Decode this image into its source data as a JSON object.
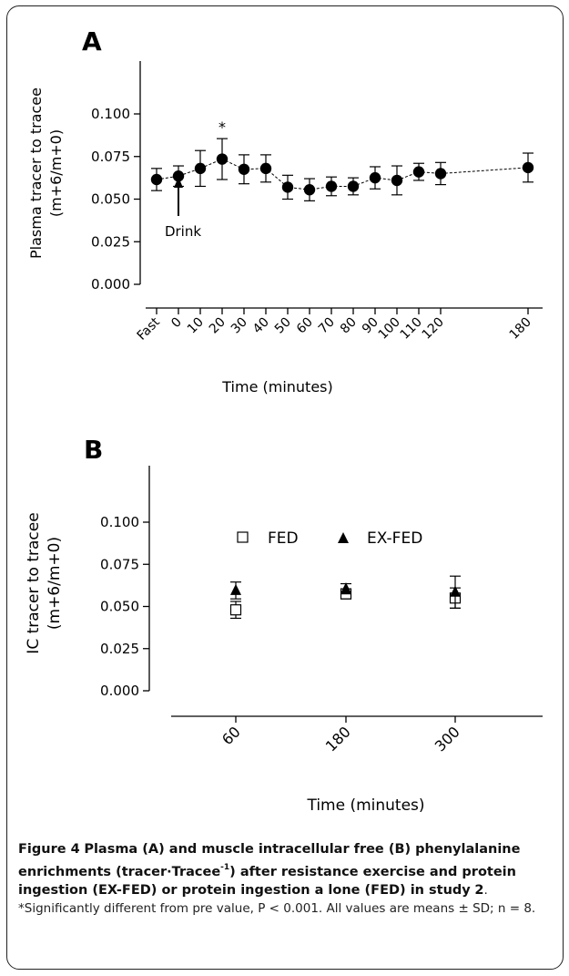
{
  "figure": {
    "caption_label": "Figure 4",
    "caption_bold_1": "Plasma (A) and muscle intracellular free (B) phenylalanine enrichments (tracer·Tracee",
    "caption_sup": "-1",
    "caption_bold_2": ") after resistance exercise and protein ingestion (EX-FED) or protein ingestion a lone (FED) in study",
    "caption_bold_3": "2",
    "caption_plain": ". *Significantly different from pre value, P < 0.001. All values are means ± SD; n = 8."
  },
  "chart_data": [
    {
      "panel": "A",
      "type": "line",
      "xlabel": "Time (minutes)",
      "ylabel_line1": "Plasma tracer to tracee",
      "ylabel_line2": "(m+6/m+0)",
      "ylim": [
        0,
        0.12
      ],
      "yticks": [
        0.0,
        0.025,
        0.05,
        0.075,
        0.1
      ],
      "ytick_labels": [
        "0.000",
        "0.025",
        "0.050",
        "0.075",
        "0.100"
      ],
      "categories": [
        "Fast",
        "0",
        "10",
        "20",
        "30",
        "40",
        "50",
        "60",
        "70",
        "80",
        "90",
        "100",
        "110",
        "120",
        "180"
      ],
      "values": [
        0.0615,
        0.0635,
        0.068,
        0.0735,
        0.0675,
        0.068,
        0.057,
        0.0555,
        0.0575,
        0.0575,
        0.0625,
        0.061,
        0.066,
        0.065,
        0.0685
      ],
      "errors": [
        0.0065,
        0.006,
        0.0105,
        0.012,
        0.0085,
        0.008,
        0.007,
        0.0065,
        0.0055,
        0.005,
        0.0065,
        0.0085,
        0.005,
        0.0065,
        0.0085
      ],
      "significance_marker": {
        "category": "20",
        "label": "*"
      },
      "annotation": {
        "label": "Drink",
        "category": "0"
      }
    },
    {
      "panel": "B",
      "type": "scatter",
      "xlabel": "Time  (minutes)",
      "ylabel_line1": "IC tracer to tracee",
      "ylabel_line2": "(m+6/m+0)",
      "ylim": [
        0,
        0.12
      ],
      "yticks": [
        0.0,
        0.025,
        0.05,
        0.075,
        0.1
      ],
      "ytick_labels": [
        "0.000",
        "0.025",
        "0.050",
        "0.075",
        "0.100"
      ],
      "categories": [
        "60",
        "180",
        "300"
      ],
      "series": [
        {
          "name": "FED",
          "marker": "open-square",
          "values": [
            0.048,
            0.0575,
            0.055
          ],
          "errors": [
            0.005,
            0.003,
            0.006
          ]
        },
        {
          "name": "EX-FED",
          "marker": "filled-triangle",
          "values": [
            0.0595,
            0.0605,
            0.0585
          ],
          "errors": [
            0.005,
            0.003,
            0.0095
          ]
        }
      ],
      "legend": "top"
    }
  ]
}
